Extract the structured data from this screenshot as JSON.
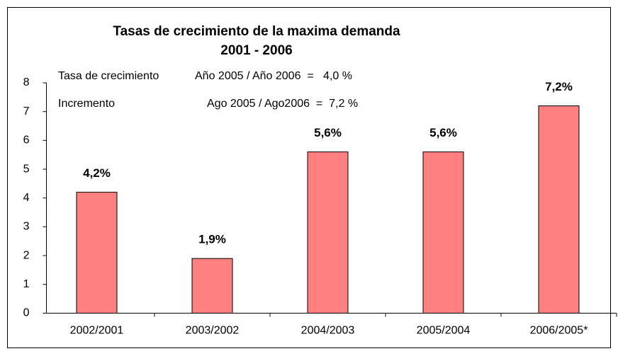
{
  "chart_data": {
    "type": "bar",
    "title": [
      "Tasas de crecimiento de la maxima demanda",
      "2001 - 2006"
    ],
    "annotations": [
      {
        "label": "Tasa de crecimiento",
        "text": "Año 2005 / Año 2006  =   4,0 %"
      },
      {
        "label": "Incremento",
        "text": "Ago 2005 / Ago2006  =  7,2 %"
      }
    ],
    "categories": [
      "2002/2001",
      "2003/2002",
      "2004/2003",
      "2005/2004",
      "2006/2005*"
    ],
    "values": [
      4.2,
      1.9,
      5.6,
      5.6,
      7.2
    ],
    "value_labels": [
      "4,2%",
      "1,9%",
      "5,6%",
      "5,6%",
      "7,2%"
    ],
    "color": "#ff8080",
    "ylim": [
      0,
      8
    ],
    "yticks": [
      0,
      1,
      2,
      3,
      4,
      5,
      6,
      7,
      8
    ],
    "grid": false
  }
}
